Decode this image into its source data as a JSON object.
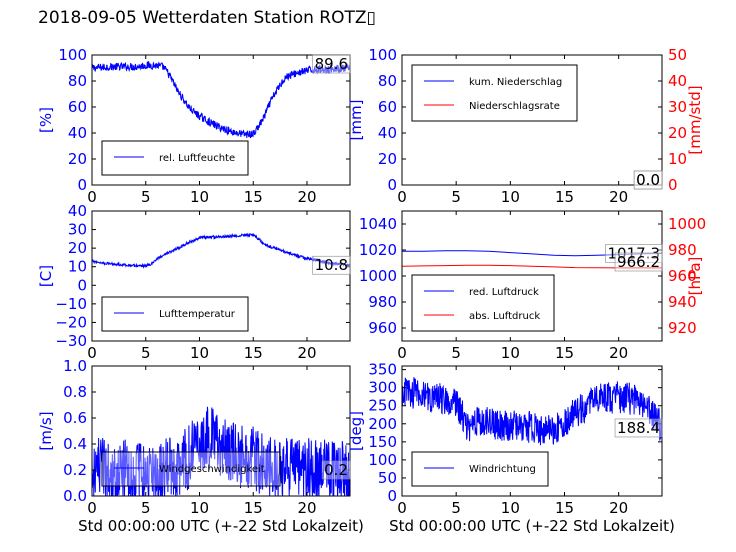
{
  "title": "2018-09-05 Wetterdaten Station ROTZ▯",
  "colors": {
    "primary": "#0000ff",
    "secondary": "#ff0000",
    "legend_border": "#000000"
  },
  "chart_data": [
    {
      "id": "humidity",
      "type": "line",
      "ylabel": "[%]",
      "xlabel": "",
      "xlim": [
        0,
        24
      ],
      "ylim": [
        0,
        100
      ],
      "xticks": [
        "0",
        "5",
        "10",
        "15",
        "20"
      ],
      "yticks": [
        "0",
        "20",
        "40",
        "60",
        "80",
        "100"
      ],
      "legend": [
        "rel. Luftfeuchte"
      ],
      "legend_position": "bottom-left",
      "value_box": "89.6",
      "grid": false,
      "series": [
        {
          "name": "rel. Luftfeuchte",
          "color": "#0000ff",
          "noise": 3,
          "x": [
            0,
            2,
            4,
            5,
            6,
            6.6,
            7,
            7.5,
            8,
            8.5,
            9,
            9.5,
            10,
            11,
            12,
            13,
            14,
            15,
            15.5,
            16,
            16.5,
            17,
            17.5,
            18,
            19,
            20,
            21,
            22,
            23,
            24
          ],
          "y": [
            90,
            91,
            91,
            92,
            92,
            91,
            87,
            80,
            72,
            66,
            60,
            56,
            53,
            48,
            44,
            41,
            39,
            39,
            45,
            52,
            62,
            70,
            77,
            83,
            86,
            88,
            89,
            89,
            89.5,
            89.6
          ]
        }
      ]
    },
    {
      "id": "precipitation",
      "type": "line",
      "ylabel": "[mm]",
      "ylabel_right": "[mm/std]",
      "xlabel": "",
      "xlim": [
        0,
        24
      ],
      "ylim": [
        0,
        100
      ],
      "ylim_right": [
        0,
        50
      ],
      "xticks": [
        "0",
        "5",
        "10",
        "15",
        "20"
      ],
      "yticks": [
        "0",
        "20",
        "40",
        "60",
        "80",
        "100"
      ],
      "yticks_right": [
        "0",
        "10",
        "20",
        "30",
        "40",
        "50"
      ],
      "legend": [
        "kum. Niederschlag",
        "Niederschlagsrate"
      ],
      "legend_position": "top-left",
      "value_box": "0.0",
      "value_box_2": "0.0",
      "grid": false,
      "series": [
        {
          "name": "kum. Niederschlag",
          "color": "#0000ff",
          "x": [
            0,
            24
          ],
          "y": [
            0,
            0
          ]
        },
        {
          "name": "Niederschlagsrate",
          "color": "#ff0000",
          "axis": "right",
          "x": [
            0,
            24
          ],
          "y": [
            0,
            0
          ]
        }
      ]
    },
    {
      "id": "temperature",
      "type": "line",
      "ylabel": "[C]",
      "xlabel": "",
      "xlim": [
        0,
        24
      ],
      "ylim": [
        -30,
        40
      ],
      "xticks": [
        "0",
        "5",
        "10",
        "15",
        "20"
      ],
      "yticks": [
        "−30",
        "−20",
        "−10",
        "0",
        "10",
        "20",
        "30",
        "40"
      ],
      "legend": [
        "Lufttemperatur"
      ],
      "legend_position": "bottom-left",
      "value_box": "10.8",
      "grid": false,
      "series": [
        {
          "name": "Lufttemperatur",
          "color": "#0000ff",
          "noise": 0.7,
          "x": [
            0,
            1,
            2,
            3,
            4,
            5,
            5.5,
            6,
            7,
            8,
            9,
            10,
            11,
            12,
            13,
            14,
            15,
            15.5,
            16,
            17,
            18,
            19,
            20,
            21,
            22,
            23,
            24
          ],
          "y": [
            13,
            12,
            11.5,
            11,
            10.5,
            10.5,
            11.5,
            14,
            17,
            20,
            23,
            25.5,
            26,
            26,
            26.5,
            27,
            27,
            25,
            22,
            20,
            18,
            16,
            14.5,
            13.5,
            12,
            11.5,
            10.8
          ]
        }
      ]
    },
    {
      "id": "pressure",
      "type": "line",
      "ylabel": "",
      "ylabel_right": "[hPa]",
      "xlabel": "",
      "xlim": [
        0,
        24
      ],
      "ylim": [
        950,
        1050
      ],
      "ylim_right": [
        910,
        1010
      ],
      "xticks": [
        "0",
        "5",
        "10",
        "15",
        "20"
      ],
      "yticks": [
        "960",
        "980",
        "1000",
        "1020",
        "1040"
      ],
      "yticks_right": [
        "920",
        "940",
        "960",
        "980",
        "1000"
      ],
      "legend": [
        "red. Luftdruck",
        "abs. Luftdruck"
      ],
      "legend_position": "bottom-left",
      "value_box": "1017.3",
      "value_box_2": "966.2",
      "grid": false,
      "series": [
        {
          "name": "red. Luftdruck",
          "color": "#0000ff",
          "x": [
            0,
            2,
            4,
            6,
            8,
            10,
            12,
            14,
            16,
            18,
            20,
            22,
            24
          ],
          "y": [
            1019,
            1019,
            1019.5,
            1019.5,
            1019,
            1018,
            1017,
            1016,
            1015.5,
            1016,
            1016.5,
            1017,
            1017.3
          ]
        },
        {
          "name": "abs. Luftdruck",
          "color": "#ff0000",
          "axis": "right",
          "x": [
            0,
            2,
            4,
            6,
            8,
            10,
            12,
            14,
            16,
            18,
            20,
            22,
            24
          ],
          "y": [
            967.5,
            967.8,
            968,
            968.2,
            968.3,
            968,
            967.5,
            967,
            966.5,
            966.3,
            966.2,
            966.2,
            966.2
          ]
        }
      ]
    },
    {
      "id": "wind_speed",
      "type": "line",
      "ylabel": "[m/s]",
      "xlabel": "Std 00:00:00 UTC (+-22 Std Lokalzeit)",
      "xlim": [
        0,
        24
      ],
      "ylim": [
        0,
        1.0
      ],
      "xticks": [
        "0",
        "5",
        "10",
        "15",
        "20"
      ],
      "yticks": [
        "0.0",
        "0.2",
        "0.4",
        "0.6",
        "0.8",
        "1.0"
      ],
      "legend": [
        "Windgeschwindigkeit"
      ],
      "legend_position": "bottom-left",
      "value_box": "0.2",
      "grid": false,
      "series": [
        {
          "name": "Windgeschwindigkeit",
          "color": "#0000ff",
          "noise": 0.25,
          "x": [
            0,
            2,
            4,
            6,
            8,
            9,
            10,
            11,
            12,
            13,
            14,
            15,
            16,
            18,
            20,
            22,
            24
          ],
          "y": [
            0.2,
            0.2,
            0.18,
            0.15,
            0.25,
            0.3,
            0.4,
            0.45,
            0.4,
            0.35,
            0.3,
            0.3,
            0.22,
            0.2,
            0.2,
            0.2,
            0.2
          ]
        }
      ]
    },
    {
      "id": "wind_direction",
      "type": "line",
      "ylabel": "[deg]",
      "xlabel": "Std 00:00:00 UTC (+-22 Std Lokalzeit)",
      "xlim": [
        0,
        24
      ],
      "ylim": [
        0,
        360
      ],
      "xticks": [
        "0",
        "5",
        "10",
        "15",
        "20"
      ],
      "yticks": [
        "0",
        "50",
        "100",
        "150",
        "200",
        "250",
        "300",
        "350"
      ],
      "legend": [
        "Windrichtung"
      ],
      "legend_position": "bottom-left",
      "value_box": "188.4",
      "grid": false,
      "series": [
        {
          "name": "Windrichtung",
          "color": "#0000ff",
          "noise": 45,
          "x": [
            0,
            1,
            2,
            3,
            4,
            5,
            5.5,
            6,
            7,
            8,
            9,
            10,
            11,
            12,
            13,
            14,
            15,
            16,
            17,
            18,
            19,
            20,
            21,
            22,
            23,
            24
          ],
          "y": [
            290,
            285,
            280,
            270,
            270,
            260,
            230,
            190,
            210,
            200,
            195,
            190,
            195,
            190,
            180,
            180,
            200,
            230,
            250,
            265,
            270,
            275,
            270,
            255,
            230,
            188.4
          ]
        }
      ]
    }
  ]
}
